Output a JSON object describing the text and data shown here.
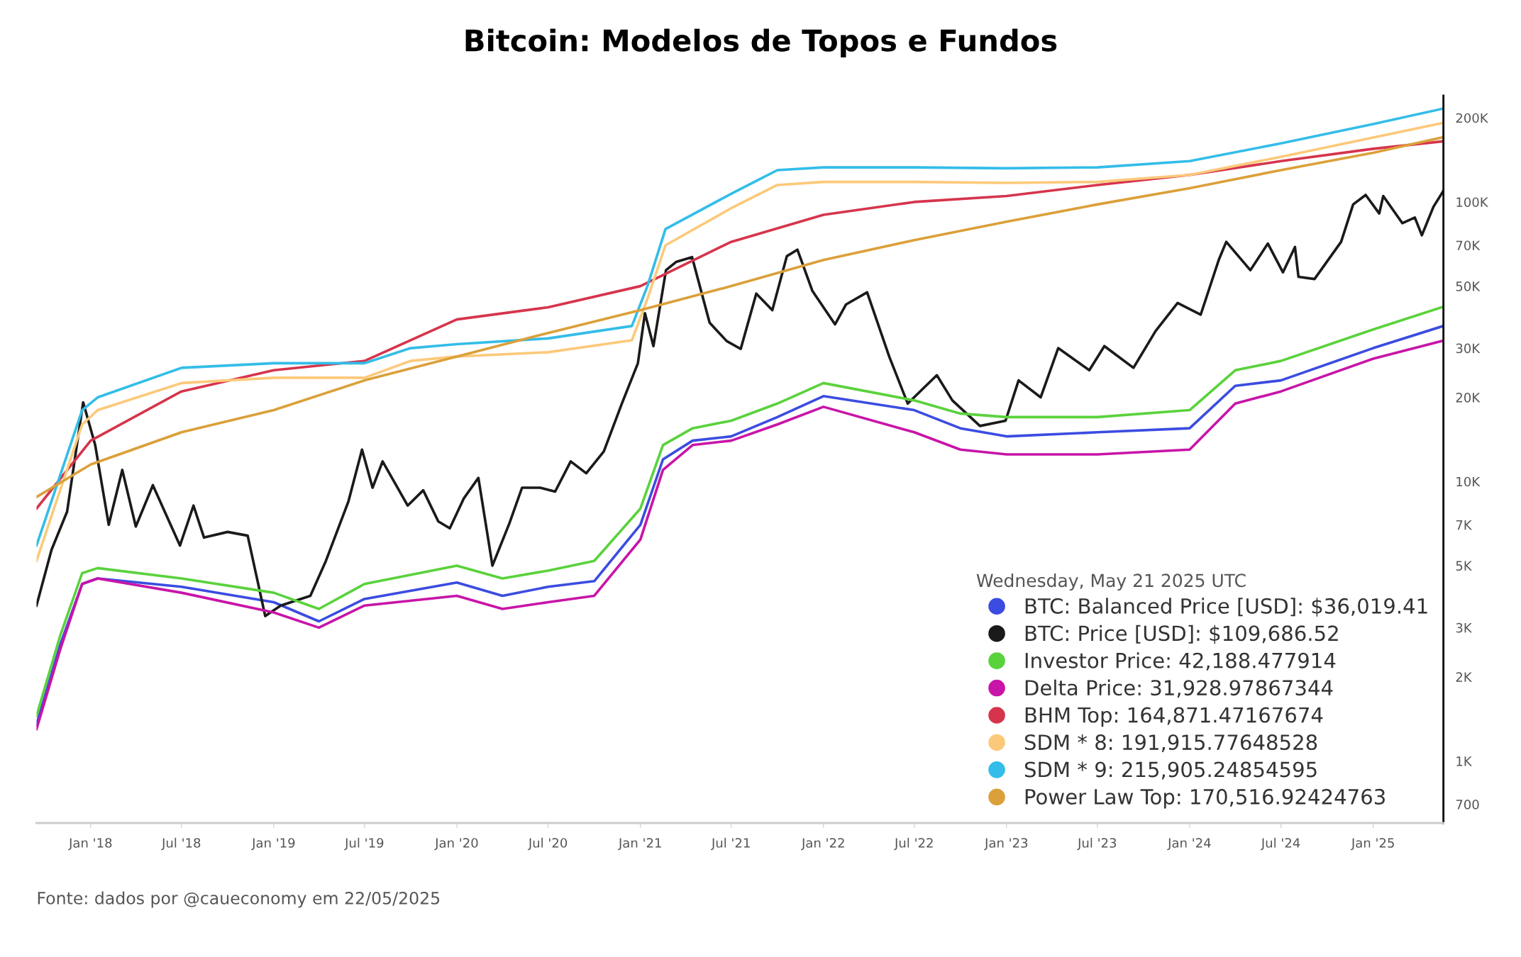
{
  "chart_data": {
    "type": "line",
    "title": "Bitcoin: Modelos de Topos e Fundos",
    "log": "y",
    "grid": false,
    "legend": "bottom right",
    "legend_title": "Wednesday, May 21 2025 UTC",
    "xlim": [
      "2017-09-15",
      "2025-05-21"
    ],
    "xticks": [
      {
        "value": "2018-01-01",
        "label": "Jan '18"
      },
      {
        "value": "2018-07-01",
        "label": "Jul '18"
      },
      {
        "value": "2019-01-01",
        "label": "Jan '19"
      },
      {
        "value": "2019-07-01",
        "label": "Jul '19"
      },
      {
        "value": "2020-01-01",
        "label": "Jan '20"
      },
      {
        "value": "2020-07-01",
        "label": "Jul '20"
      },
      {
        "value": "2021-01-01",
        "label": "Jan '21"
      },
      {
        "value": "2021-07-01",
        "label": "Jul '21"
      },
      {
        "value": "2022-01-01",
        "label": "Jan '22"
      },
      {
        "value": "2022-07-01",
        "label": "Jul '22"
      },
      {
        "value": "2023-01-01",
        "label": "Jan '23"
      },
      {
        "value": "2023-07-01",
        "label": "Jul '23"
      },
      {
        "value": "2024-01-01",
        "label": "Jan '24"
      },
      {
        "value": "2024-07-01",
        "label": "Jul '24"
      },
      {
        "value": "2025-01-01",
        "label": "Jan '25"
      }
    ],
    "ylim": [
      600,
      240000
    ],
    "yticks": [
      700,
      {
        "value": 1000,
        "label": "1K"
      },
      {
        "value": 2000,
        "label": "2K"
      },
      {
        "value": 3000,
        "label": "3K"
      },
      {
        "value": 5000,
        "label": "5K"
      },
      {
        "value": 7000,
        "label": "7K"
      },
      {
        "value": 10000,
        "label": "10K"
      },
      {
        "value": 20000,
        "label": "20K"
      },
      {
        "value": 30000,
        "label": "30K"
      },
      {
        "value": 50000,
        "label": "50K"
      },
      {
        "value": 70000,
        "label": "70K"
      },
      {
        "value": 100000,
        "label": "100K"
      },
      {
        "value": 200000,
        "label": "200K"
      }
    ],
    "annotations": [
      "Fonte: dados por @caueconomy em 22/05/2025"
    ],
    "series": [
      {
        "name": "BTC: Balanced Price [USD]: $36,019.41",
        "color": "#3b4ce0",
        "x": [
          "2017-09-15",
          "2017-11-01",
          "2017-12-15",
          "2018-01-15",
          "2018-07-01",
          "2019-01-01",
          "2019-04-01",
          "2019-07-01",
          "2020-01-01",
          "2020-04-01",
          "2020-07-01",
          "2020-10-01",
          "2021-01-01",
          "2021-02-15",
          "2021-04-15",
          "2021-07-01",
          "2021-10-01",
          "2022-01-01",
          "2022-07-01",
          "2022-10-01",
          "2023-01-01",
          "2023-07-01",
          "2024-01-01",
          "2024-04-01",
          "2024-07-01",
          "2025-01-01",
          "2025-05-21"
        ],
        "values": [
          1350,
          2600,
          4300,
          4500,
          4200,
          3700,
          3160,
          3800,
          4350,
          3900,
          4200,
          4400,
          7000,
          12000,
          14000,
          14500,
          17000,
          20200,
          18000,
          15500,
          14500,
          15000,
          15500,
          22000,
          23000,
          30000,
          36019.41
        ]
      },
      {
        "name": "BTC: Price [USD]: $109,686.52",
        "color": "#1a1a1a",
        "x": [
          "2017-09-15",
          "2017-10-15",
          "2017-11-15",
          "2017-12-17",
          "2018-01-10",
          "2018-02-06",
          "2018-03-05",
          "2018-04-01",
          "2018-05-05",
          "2018-06-28",
          "2018-07-25",
          "2018-08-15",
          "2018-10-01",
          "2018-11-10",
          "2018-12-15",
          "2019-01-15",
          "2019-03-15",
          "2019-04-15",
          "2019-05-30",
          "2019-06-26",
          "2019-07-17",
          "2019-08-06",
          "2019-09-25",
          "2019-10-26",
          "2019-11-25",
          "2019-12-18",
          "2020-01-15",
          "2020-02-13",
          "2020-03-12",
          "2020-04-15",
          "2020-05-10",
          "2020-06-15",
          "2020-07-15",
          "2020-08-15",
          "2020-09-15",
          "2020-10-20",
          "2020-11-25",
          "2020-12-27",
          "2021-01-10",
          "2021-01-27",
          "2021-02-21",
          "2021-03-13",
          "2021-04-14",
          "2021-05-19",
          "2021-06-22",
          "2021-07-20",
          "2021-08-20",
          "2021-09-21",
          "2021-10-20",
          "2021-11-10",
          "2021-12-10",
          "2022-01-24",
          "2022-02-15",
          "2022-03-29",
          "2022-05-12",
          "2022-06-18",
          "2022-08-15",
          "2022-09-15",
          "2022-11-09",
          "2022-12-30",
          "2023-01-25",
          "2023-03-10",
          "2023-04-14",
          "2023-06-15",
          "2023-07-15",
          "2023-09-11",
          "2023-10-25",
          "2023-12-08",
          "2024-01-23",
          "2024-02-28",
          "2024-03-14",
          "2024-05-01",
          "2024-06-05",
          "2024-07-05",
          "2024-07-29",
          "2024-08-05",
          "2024-09-06",
          "2024-10-29",
          "2024-11-22",
          "2024-12-17",
          "2025-01-13",
          "2025-01-21",
          "2025-02-28",
          "2025-03-25",
          "2025-04-08",
          "2025-05-01",
          "2025-05-21"
        ],
        "values": [
          3600,
          5700,
          7800,
          19200,
          13500,
          7000,
          11000,
          6900,
          9700,
          5900,
          8200,
          6300,
          6600,
          6400,
          3300,
          3600,
          3900,
          5200,
          8500,
          13000,
          9500,
          11800,
          8200,
          9300,
          7200,
          6800,
          8700,
          10300,
          5000,
          7100,
          9500,
          9500,
          9200,
          11800,
          10700,
          12800,
          19000,
          26500,
          40000,
          30500,
          57000,
          61000,
          63500,
          37000,
          31800,
          29800,
          47000,
          41000,
          64000,
          67500,
          48000,
          36500,
          43000,
          47500,
          28000,
          19000,
          24000,
          19500,
          15800,
          16500,
          23000,
          20000,
          30000,
          25000,
          30500,
          25500,
          34500,
          43500,
          39500,
          62000,
          72000,
          57000,
          71000,
          56000,
          69000,
          54000,
          53000,
          72000,
          98000,
          106000,
          91000,
          105000,
          84000,
          88000,
          76000,
          96000,
          109686.52
        ]
      },
      {
        "name": "Investor Price: 42,188.477914",
        "color": "#5ad23c",
        "x": [
          "2017-09-15",
          "2017-11-01",
          "2017-12-15",
          "2018-01-15",
          "2018-07-01",
          "2019-01-01",
          "2019-04-01",
          "2019-07-01",
          "2020-01-01",
          "2020-04-01",
          "2020-07-01",
          "2020-10-01",
          "2021-01-01",
          "2021-02-15",
          "2021-04-15",
          "2021-07-01",
          "2021-10-01",
          "2022-01-01",
          "2022-07-01",
          "2022-10-01",
          "2023-01-01",
          "2023-07-01",
          "2024-01-01",
          "2024-04-01",
          "2024-07-01",
          "2025-01-01",
          "2025-05-21"
        ],
        "values": [
          1450,
          2800,
          4700,
          4900,
          4500,
          4000,
          3500,
          4300,
          5000,
          4500,
          4800,
          5200,
          8000,
          13500,
          15500,
          16500,
          19000,
          22500,
          19500,
          17500,
          17000,
          17000,
          18000,
          25000,
          27000,
          35000,
          42188.477914
        ]
      },
      {
        "name": "Delta Price: 31,928.97867344",
        "color": "#c814a8",
        "x": [
          "2017-09-15",
          "2017-11-01",
          "2017-12-15",
          "2018-01-15",
          "2018-07-01",
          "2019-01-01",
          "2019-04-01",
          "2019-07-01",
          "2020-01-01",
          "2020-04-01",
          "2020-07-01",
          "2020-10-01",
          "2021-01-01",
          "2021-02-15",
          "2021-04-15",
          "2021-07-01",
          "2021-10-01",
          "2022-01-01",
          "2022-07-01",
          "2022-10-01",
          "2023-01-01",
          "2023-07-01",
          "2024-01-01",
          "2024-04-01",
          "2024-07-01",
          "2025-01-01",
          "2025-05-21"
        ],
        "values": [
          1300,
          2500,
          4300,
          4500,
          4000,
          3400,
          3000,
          3600,
          3900,
          3500,
          3700,
          3900,
          6200,
          11000,
          13500,
          14000,
          16000,
          18500,
          15000,
          13000,
          12500,
          12500,
          13000,
          19000,
          21000,
          27500,
          31928.97867344
        ]
      },
      {
        "name": "BHM Top: 164,871.47167674",
        "color": "#d6344c",
        "x": [
          "2017-09-15",
          "2018-01-01",
          "2018-07-01",
          "2019-01-01",
          "2019-07-01",
          "2020-01-01",
          "2020-07-01",
          "2021-01-01",
          "2021-07-01",
          "2022-01-01",
          "2022-07-01",
          "2023-01-01",
          "2023-07-01",
          "2024-01-01",
          "2024-07-01",
          "2025-01-01",
          "2025-05-21"
        ],
        "values": [
          8000,
          14000,
          21000,
          25000,
          27000,
          38000,
          42000,
          50000,
          72000,
          90000,
          100000,
          105000,
          115000,
          125000,
          140000,
          155000,
          164871.47167674
        ]
      },
      {
        "name": "SDM * 8: 191,915.77648528",
        "color": "#fcc97a",
        "x": [
          "2017-09-15",
          "2017-12-15",
          "2018-01-15",
          "2018-07-01",
          "2019-01-01",
          "2019-07-01",
          "2019-10-01",
          "2020-01-01",
          "2020-07-01",
          "2020-12-15",
          "2021-01-15",
          "2021-02-20",
          "2021-07-01",
          "2021-10-01",
          "2022-01-01",
          "2022-07-01",
          "2023-01-01",
          "2023-07-01",
          "2024-01-01",
          "2024-07-01",
          "2025-01-01",
          "2025-05-21"
        ],
        "values": [
          5200,
          16000,
          18000,
          22500,
          23500,
          23500,
          27000,
          28000,
          29000,
          32000,
          45000,
          70000,
          95000,
          115000,
          118000,
          118000,
          117000,
          118000,
          125000,
          145000,
          170000,
          191915.77648528
        ]
      },
      {
        "name": "SDM * 9: 215,905.24854595",
        "color": "#33bde8",
        "x": [
          "2017-09-15",
          "2017-12-15",
          "2018-01-15",
          "2018-07-01",
          "2019-01-01",
          "2019-07-01",
          "2019-10-01",
          "2020-01-01",
          "2020-07-01",
          "2020-12-15",
          "2021-01-15",
          "2021-02-20",
          "2021-07-01",
          "2021-10-01",
          "2022-01-01",
          "2022-07-01",
          "2023-01-01",
          "2023-07-01",
          "2024-01-01",
          "2024-07-01",
          "2025-01-01",
          "2025-05-21"
        ],
        "values": [
          5900,
          18000,
          20000,
          25500,
          26500,
          26500,
          30000,
          31000,
          32500,
          36000,
          50000,
          80000,
          107000,
          130000,
          133000,
          133000,
          132000,
          133000,
          140000,
          162000,
          190000,
          215905.24854595
        ]
      },
      {
        "name": "Power Law Top: 170,516.92424763",
        "color": "#dba03a",
        "x": [
          "2017-09-15",
          "2018-01-01",
          "2018-07-01",
          "2019-01-01",
          "2019-07-01",
          "2020-01-01",
          "2020-07-01",
          "2021-01-01",
          "2021-07-01",
          "2022-01-01",
          "2022-07-01",
          "2023-01-01",
          "2023-07-01",
          "2024-01-01",
          "2024-07-01",
          "2025-01-01",
          "2025-05-21"
        ],
        "values": [
          8800,
          11500,
          15000,
          18000,
          23000,
          28000,
          34000,
          41000,
          50000,
          62000,
          73000,
          85000,
          98000,
          112000,
          130000,
          150000,
          170516.92424763
        ]
      }
    ]
  }
}
